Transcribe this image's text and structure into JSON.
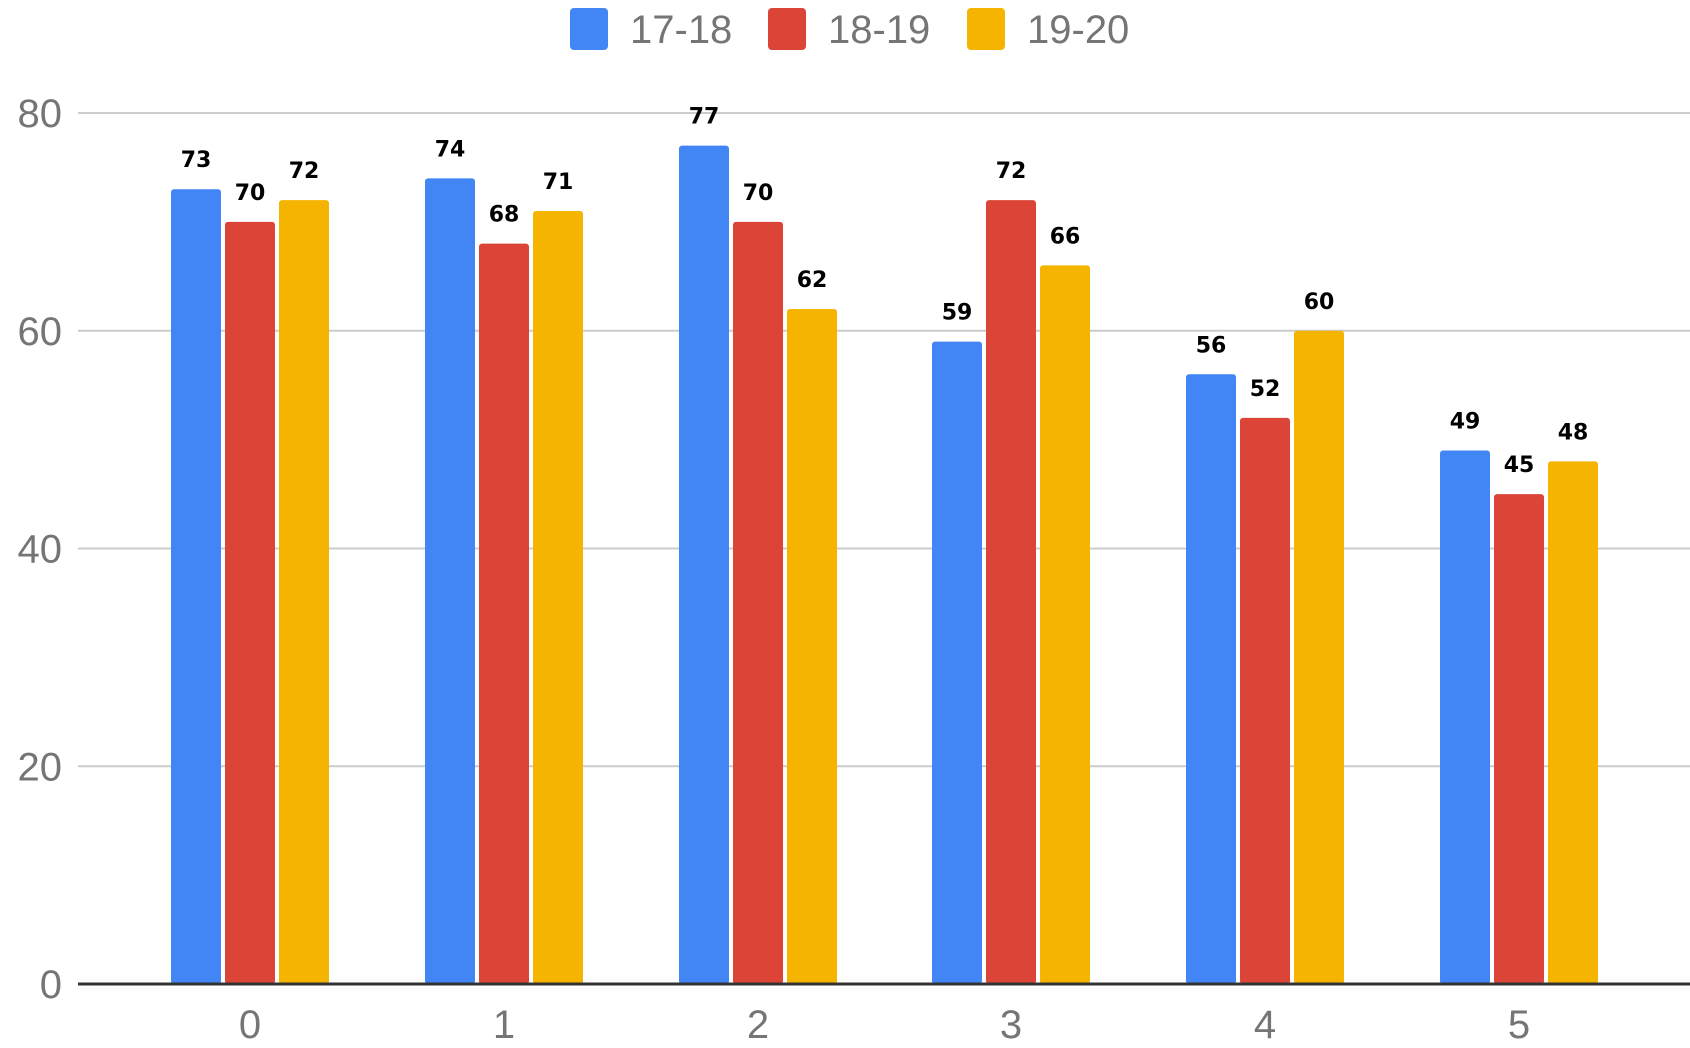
{
  "chart_data": {
    "type": "bar",
    "categories": [
      "0",
      "1",
      "2",
      "3",
      "4",
      "5"
    ],
    "series": [
      {
        "name": "17-18",
        "color": "#4285F4",
        "values": [
          73,
          74,
          77,
          59,
          56,
          49
        ]
      },
      {
        "name": "18-19",
        "color": "#DB4437",
        "values": [
          70,
          68,
          70,
          72,
          52,
          45
        ]
      },
      {
        "name": "19-20",
        "color": "#F4B400",
        "values": [
          72,
          71,
          62,
          66,
          60,
          48
        ]
      }
    ],
    "title": "",
    "xlabel": "",
    "ylabel": "",
    "ylim": [
      0,
      80
    ],
    "yticks": [
      "0",
      "20",
      "40",
      "60",
      "80"
    ],
    "grid": true,
    "legend_position": "top-center",
    "data_labels": true
  }
}
